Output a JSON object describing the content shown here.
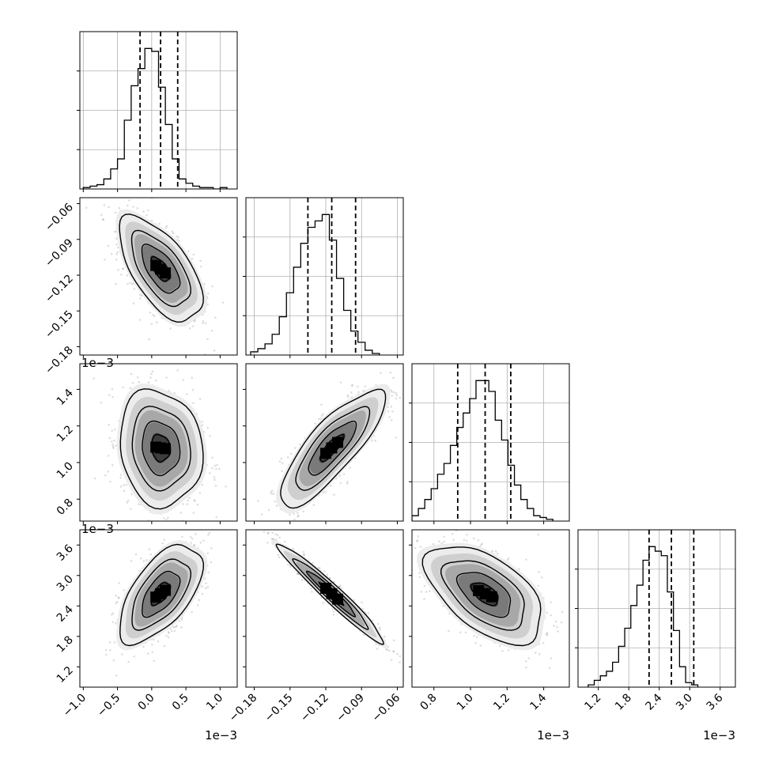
{
  "chart_data": {
    "type": "corner",
    "grid": true,
    "quantile_lines": "dashed",
    "variables": [
      {
        "range": [
          -1.05,
          1.25
        ],
        "ticks": [
          -1.0,
          -0.5,
          0.0,
          0.5,
          1.0
        ],
        "tick_labels": [
          "−1.0",
          "−0.5",
          "0.0",
          "0.5",
          "1.0"
        ],
        "offset_label": "1e−3",
        "median": 0.13,
        "quantiles": [
          -0.17,
          0.13,
          0.38
        ],
        "histogram": {
          "start": -1.0,
          "step": 0.1,
          "counts": [
            1,
            2,
            3,
            7,
            14,
            21,
            48,
            72,
            84,
            98,
            96,
            71,
            45,
            21,
            7,
            4,
            2,
            1,
            1,
            0,
            1
          ]
        }
      },
      {
        "range": [
          -0.187,
          -0.055
        ],
        "ticks": [
          -0.18,
          -0.15,
          -0.12,
          -0.09,
          -0.06
        ],
        "tick_labels": [
          "−0.18",
          "−0.15",
          "−0.12",
          "−0.09",
          "−0.06"
        ],
        "offset_label": "",
        "median": -0.115,
        "quantiles": [
          -0.135,
          -0.115,
          -0.095
        ],
        "histogram": {
          "start": -0.183,
          "step": 0.006,
          "counts": [
            2,
            4,
            7,
            13,
            24,
            39,
            55,
            70,
            80,
            84,
            88,
            72,
            48,
            28,
            15,
            8,
            3,
            1
          ]
        }
      },
      {
        "range": [
          0.68,
          1.54
        ],
        "ticks": [
          0.8,
          1.0,
          1.2,
          1.4
        ],
        "tick_labels": [
          "0.8",
          "1.0",
          "1.2",
          "1.4"
        ],
        "offset_label": "1e−3",
        "median": 1.08,
        "quantiles": [
          0.93,
          1.08,
          1.22
        ],
        "histogram": {
          "start": 0.68,
          "step": 0.035,
          "counts": [
            3,
            7,
            12,
            18,
            26,
            32,
            42,
            52,
            60,
            68,
            78,
            78,
            72,
            56,
            45,
            31,
            20,
            12,
            7,
            3,
            2,
            1
          ]
        }
      },
      {
        "range": [
          0.8,
          3.9
        ],
        "ticks": [
          1.2,
          1.8,
          2.4,
          3.0,
          3.6
        ],
        "tick_labels": [
          "1.2",
          "1.8",
          "2.4",
          "3.0",
          "3.6"
        ],
        "offset_label": "1e−3",
        "median": 2.64,
        "quantiles": [
          2.2,
          2.64,
          3.08
        ],
        "histogram": {
          "start": 1.0,
          "step": 0.12,
          "counts": [
            1,
            3,
            5,
            7,
            11,
            18,
            26,
            36,
            45,
            56,
            62,
            60,
            58,
            42,
            25,
            9,
            2,
            1
          ]
        }
      }
    ],
    "pairs": [
      {
        "x": 0,
        "y": 1,
        "center": [
          0.13,
          -0.115
        ],
        "rho": -0.62
      },
      {
        "x": 0,
        "y": 2,
        "center": [
          0.13,
          1.08
        ],
        "rho": -0.12
      },
      {
        "x": 1,
        "y": 2,
        "center": [
          -0.115,
          1.08
        ],
        "rho": 0.82
      },
      {
        "x": 0,
        "y": 3,
        "center": [
          0.13,
          2.64
        ],
        "rho": 0.6
      },
      {
        "x": 1,
        "y": 3,
        "center": [
          -0.115,
          2.64
        ],
        "rho": -0.97
      },
      {
        "x": 2,
        "y": 3,
        "center": [
          1.08,
          2.64
        ],
        "rho": -0.55
      }
    ]
  }
}
